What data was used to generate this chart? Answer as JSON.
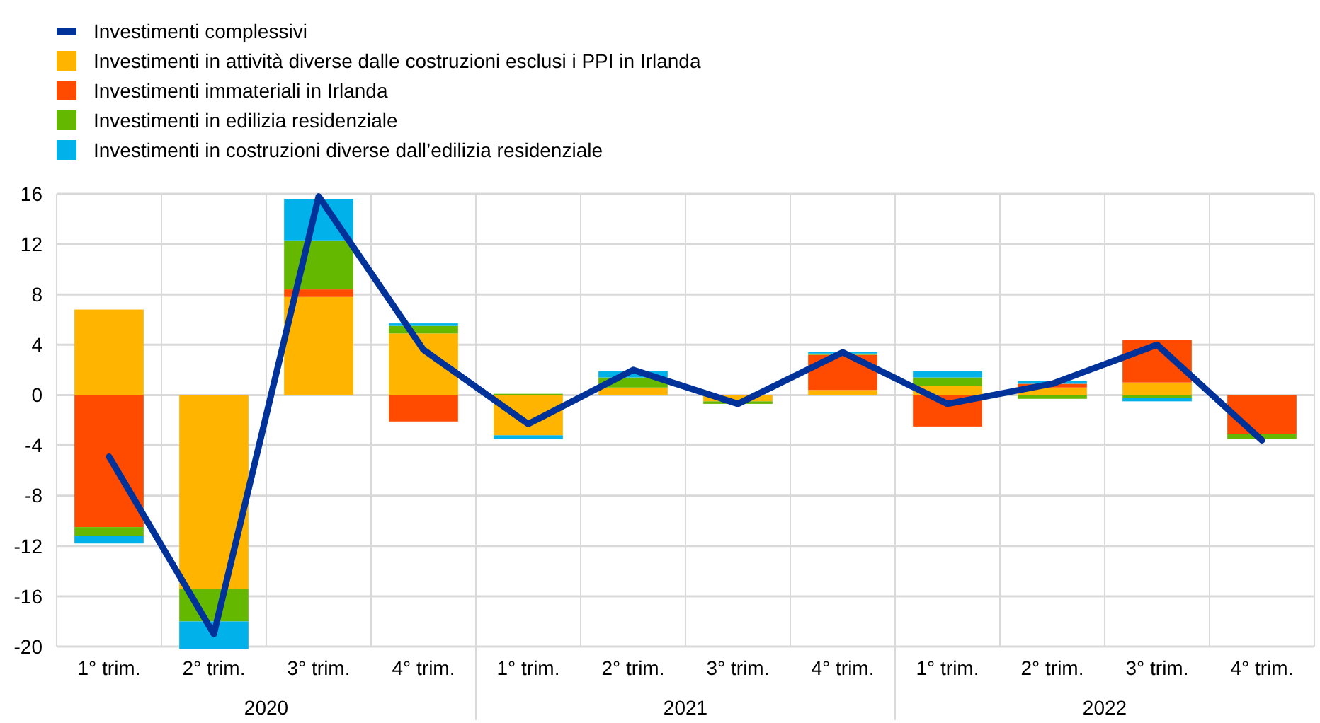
{
  "chart_data": {
    "type": "bar",
    "stacked": true,
    "categories": [
      "1° trim.",
      "2° trim.",
      "3° trim.",
      "4° trim.",
      "1° trim.",
      "2° trim.",
      "3° trim.",
      "4° trim.",
      "1° trim.",
      "2° trim.",
      "3° trim.",
      "4° trim."
    ],
    "annotations": [
      "2020",
      "2021",
      "2022"
    ],
    "series": [
      {
        "name": "Investimenti complessivi",
        "type": "line",
        "color": "#003299",
        "values": [
          -4.9,
          -19,
          15.8,
          3.6,
          -2.3,
          2.0,
          -0.7,
          3.4,
          -0.7,
          0.9,
          4.0,
          -3.6
        ]
      },
      {
        "name": "Investimenti in attività diverse dalle costruzioni esclusi i PPI in Irlanda",
        "color": "#ffb400",
        "values": [
          6.8,
          -15.4,
          7.8,
          4.9,
          -3.2,
          0.6,
          -0.5,
          0.4,
          0.7,
          0.6,
          1.0,
          0
        ]
      },
      {
        "name": "Investimenti immateriali in Irlanda",
        "color": "#ff4b00",
        "values": [
          -10.5,
          0,
          0.6,
          -2.1,
          0,
          0,
          0,
          2.8,
          -2.5,
          0.3,
          3.4,
          -3.1
        ]
      },
      {
        "name": "Investimenti in edilizia residenziale",
        "color": "#65b800",
        "values": [
          -0.7,
          -2.6,
          3.9,
          0.6,
          0.1,
          0.8,
          -0.2,
          0.1,
          0.7,
          -0.3,
          -0.2,
          -0.4
        ]
      },
      {
        "name": "Investimenti in costruzioni diverse dall’edilizia residenziale",
        "color": "#00b1ea",
        "values": [
          -0.6,
          -2.2,
          3.3,
          0.2,
          -0.3,
          0.5,
          0,
          0.1,
          0.5,
          0.2,
          -0.3,
          null
        ]
      }
    ],
    "ylim": [
      -20,
      16
    ],
    "yticks": [
      -20,
      -16,
      -12,
      -8,
      -4,
      0,
      4,
      8,
      12,
      16
    ],
    "grid": true,
    "legend": "top left"
  }
}
